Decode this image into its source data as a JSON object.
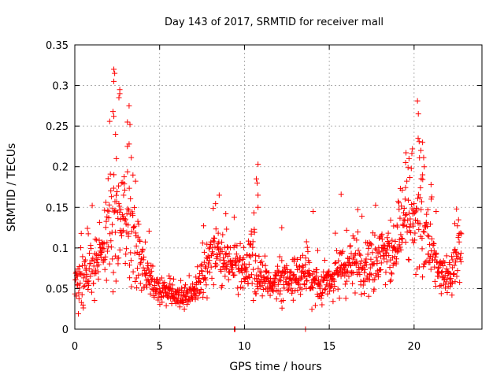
{
  "chart_data": {
    "type": "scatter",
    "title": "Day 143 of 2017, SRMTID for receiver mall",
    "xlabel": "GPS time / hours",
    "ylabel": "SRMTID / TECUs",
    "xlim": [
      0,
      24
    ],
    "ylim": [
      0,
      0.35
    ],
    "x_ticks": [
      0,
      5,
      10,
      15,
      20
    ],
    "x_tick_labels": [
      "0",
      "5",
      "10",
      "15",
      "20"
    ],
    "y_ticks": [
      0,
      0.05,
      0.1,
      0.15,
      0.2,
      0.25,
      0.3,
      0.35
    ],
    "y_tick_labels": [
      "0",
      "0.05",
      "0.1",
      "0.15",
      "0.2",
      "0.25",
      "0.3",
      "0.35"
    ],
    "grid": true,
    "marker": "plus",
    "colors": {
      "series": "#ff0000",
      "grid": "#a0a0a0",
      "axis": "#000000"
    },
    "series": [
      {
        "name": "SRMTID",
        "profile": {
          "x": [
            0.0,
            0.5,
            1.0,
            1.5,
            2.0,
            2.5,
            3.0,
            3.5,
            4.0,
            4.5,
            5.0,
            5.5,
            6.0,
            6.5,
            7.0,
            7.5,
            8.0,
            8.5,
            9.0,
            9.5,
            10.0,
            10.5,
            11.0,
            11.5,
            12.0,
            12.5,
            13.0,
            13.5,
            14.0,
            14.5,
            15.0,
            15.5,
            16.0,
            16.5,
            17.0,
            17.5,
            18.0,
            18.5,
            19.0,
            19.5,
            20.0,
            20.5,
            21.0,
            21.5,
            22.0,
            22.5,
            22.8
          ],
          "median": [
            0.06,
            0.055,
            0.08,
            0.09,
            0.12,
            0.14,
            0.13,
            0.11,
            0.08,
            0.06,
            0.045,
            0.045,
            0.042,
            0.04,
            0.045,
            0.07,
            0.085,
            0.09,
            0.085,
            0.08,
            0.07,
            0.08,
            0.055,
            0.05,
            0.055,
            0.06,
            0.065,
            0.065,
            0.06,
            0.055,
            0.06,
            0.07,
            0.075,
            0.08,
            0.075,
            0.08,
            0.085,
            0.09,
            0.1,
            0.12,
            0.14,
            0.13,
            0.1,
            0.07,
            0.06,
            0.08,
            0.09
          ],
          "spread": [
            0.025,
            0.025,
            0.035,
            0.04,
            0.06,
            0.07,
            0.06,
            0.05,
            0.035,
            0.02,
            0.015,
            0.015,
            0.012,
            0.012,
            0.015,
            0.025,
            0.03,
            0.03,
            0.03,
            0.025,
            0.025,
            0.035,
            0.02,
            0.02,
            0.02,
            0.02,
            0.025,
            0.025,
            0.025,
            0.02,
            0.02,
            0.025,
            0.025,
            0.03,
            0.025,
            0.03,
            0.03,
            0.035,
            0.04,
            0.05,
            0.06,
            0.05,
            0.035,
            0.025,
            0.02,
            0.03,
            0.03
          ]
        },
        "sample_count": 1300,
        "peaks": [
          {
            "x": 2.3,
            "y": 0.32
          },
          {
            "x": 2.35,
            "y": 0.315
          },
          {
            "x": 2.3,
            "y": 0.305
          },
          {
            "x": 2.65,
            "y": 0.295
          },
          {
            "x": 2.65,
            "y": 0.29
          },
          {
            "x": 2.6,
            "y": 0.285
          },
          {
            "x": 2.25,
            "y": 0.268
          },
          {
            "x": 2.3,
            "y": 0.262
          },
          {
            "x": 3.2,
            "y": 0.275
          },
          {
            "x": 3.1,
            "y": 0.255
          },
          {
            "x": 3.25,
            "y": 0.252
          },
          {
            "x": 3.2,
            "y": 0.228
          },
          {
            "x": 3.1,
            "y": 0.225
          },
          {
            "x": 2.4,
            "y": 0.24
          },
          {
            "x": 2.45,
            "y": 0.21
          },
          {
            "x": 10.8,
            "y": 0.203
          },
          {
            "x": 10.7,
            "y": 0.185
          },
          {
            "x": 10.75,
            "y": 0.18
          },
          {
            "x": 10.8,
            "y": 0.165
          },
          {
            "x": 10.8,
            "y": 0.15
          },
          {
            "x": 14.05,
            "y": 0.145
          },
          {
            "x": 15.7,
            "y": 0.166
          },
          {
            "x": 8.9,
            "y": 0.142
          },
          {
            "x": 12.2,
            "y": 0.125
          },
          {
            "x": 20.2,
            "y": 0.281
          },
          {
            "x": 20.25,
            "y": 0.265
          },
          {
            "x": 19.9,
            "y": 0.222
          },
          {
            "x": 20.3,
            "y": 0.231
          },
          {
            "x": 20.5,
            "y": 0.23
          },
          {
            "x": 20.4,
            "y": 0.22
          },
          {
            "x": 19.5,
            "y": 0.205
          },
          {
            "x": 19.7,
            "y": 0.21
          },
          {
            "x": 20.6,
            "y": 0.2
          },
          {
            "x": 20.5,
            "y": 0.19
          },
          {
            "x": 21.0,
            "y": 0.178
          },
          {
            "x": 21.3,
            "y": 0.145
          },
          {
            "x": 22.5,
            "y": 0.148
          },
          {
            "x": 22.4,
            "y": 0.13
          },
          {
            "x": 9.4,
            "y": 0.0
          },
          {
            "x": 9.45,
            "y": 0.0
          },
          {
            "x": 13.6,
            "y": 0.0
          }
        ]
      }
    ]
  }
}
